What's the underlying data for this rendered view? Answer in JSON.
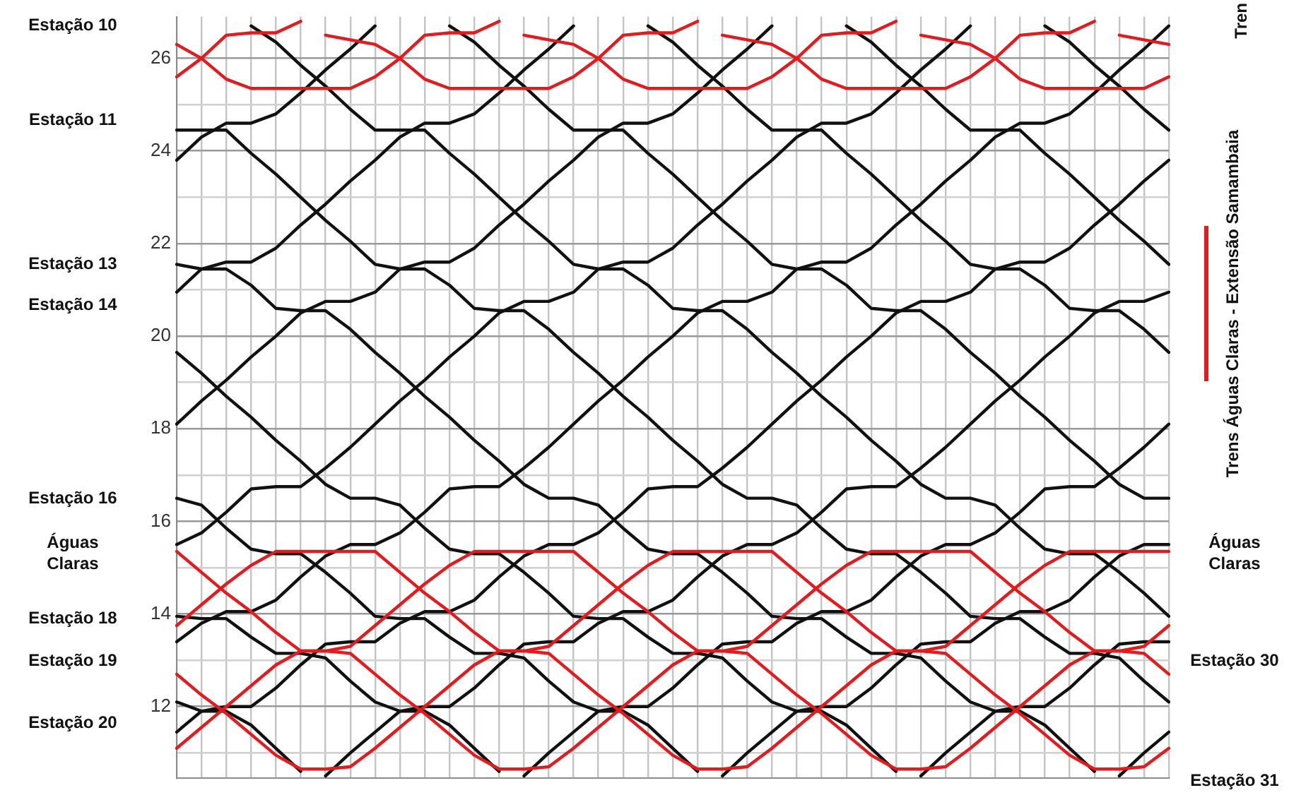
{
  "chart_data": {
    "type": "line",
    "annotations": [
      "Tren",
      "Estação 10",
      "Estação 11",
      "Estação 13",
      "Estação 14",
      "Estação 16",
      "Águas Claras",
      "Estação 18",
      "Estação 19",
      "Estação 20",
      "Águas Claras",
      "Estação 30",
      "Estação 31"
    ],
    "legend": "right",
    "grid": true,
    "marker": "none",
    "line_style": "solid",
    "tick_labels": "y",
    "categories": [
      null,
      null,
      null,
      null,
      null,
      null,
      null,
      null,
      null,
      null,
      null,
      null,
      null,
      null,
      null,
      null,
      null,
      null,
      null,
      null,
      null,
      null,
      null,
      null,
      null,
      null,
      null,
      null,
      null,
      null,
      null,
      null,
      null,
      null,
      null,
      null,
      null,
      null,
      null,
      null,
      null
    ],
    "ylim": [
      10.45,
      26.9
    ],
    "yticks": [
      {
        "value": 11,
        "label": null
      },
      12,
      {
        "value": 13,
        "label": null
      },
      14,
      {
        "value": 15,
        "label": null
      },
      16,
      {
        "value": 17,
        "label": null
      },
      18,
      {
        "value": 19,
        "label": null
      },
      20,
      {
        "value": 21,
        "label": null
      },
      22,
      {
        "value": 23,
        "label": null
      },
      24,
      {
        "value": 25,
        "label": null
      },
      26
    ],
    "series": [
      {
        "color": "#e41a1c",
        "name": "Trens Águas Claras - Extensão Samambaia",
        "values": [
          15.35,
          14.9,
          14.45,
          14.05,
          13.6,
          13.2,
          13.2,
          13.15,
          12.7,
          12.25,
          11.85,
          11.4,
          10.95,
          10.65,
          10.65,
          10.7,
          11.1,
          11.55,
          12.0,
          12.45,
          12.9,
          13.2,
          13.2,
          13.3,
          13.75,
          14.2,
          14.65,
          15.05,
          15.35,
          15.35,
          15.35,
          15.35,
          15.35,
          14.9,
          14.45,
          14.05,
          13.6,
          13.2,
          13.2,
          13.15,
          12.7
        ]
      },
      {
        "color": "#e41a1c",
        "values": [
          13.75,
          14.2,
          14.65,
          15.05,
          15.35,
          15.35,
          15.35,
          15.35,
          15.35,
          14.9,
          14.45,
          14.05,
          13.6,
          13.2,
          13.2,
          13.15,
          12.7,
          12.25,
          11.85,
          11.4,
          10.95,
          10.65,
          10.65,
          10.7,
          11.1,
          11.55,
          12.0,
          12.45,
          12.9,
          13.2,
          13.2,
          13.3,
          13.75,
          14.2,
          14.65,
          15.05,
          15.35,
          15.35,
          15.35,
          15.35,
          15.35
        ]
      },
      {
        "color": "#e41a1c",
        "values": [
          11.1,
          11.55,
          12.0,
          12.45,
          12.9,
          13.2,
          13.2,
          13.3,
          13.75,
          14.2,
          14.65,
          15.05,
          15.35,
          15.35,
          15.35,
          15.35,
          15.35,
          14.9,
          14.45,
          14.05,
          13.6,
          13.2,
          13.2,
          13.15,
          12.7,
          12.25,
          11.85,
          11.4,
          10.95,
          10.65,
          10.65,
          10.7,
          11.1,
          11.55,
          12.0,
          12.45,
          12.9,
          13.2,
          13.2,
          13.3,
          13.75
        ]
      },
      {
        "color": "#e41a1c",
        "values": [
          12.7,
          12.25,
          11.85,
          11.4,
          10.95,
          10.65,
          10.65,
          10.7,
          11.1,
          11.55,
          12.0,
          12.45,
          12.9,
          13.2,
          13.2,
          13.3,
          13.75,
          14.2,
          14.65,
          15.05,
          15.35,
          15.35,
          15.35,
          15.35,
          15.35,
          14.9,
          14.45,
          14.05,
          13.6,
          13.2,
          13.2,
          13.15,
          12.7,
          12.25,
          11.85,
          11.4,
          10.95,
          10.65,
          10.65,
          10.7,
          11.1
        ]
      },
      {
        "color": "#e41a1c",
        "values": [
          25.6,
          26.0,
          26.5,
          26.55,
          26.55,
          26.8,
          null,
          null,
          null,
          null,
          null,
          null,
          null,
          null,
          null,
          null,
          null,
          null,
          null,
          null,
          null,
          null,
          null,
          null,
          null,
          null,
          null,
          null,
          null,
          null,
          null,
          null,
          null,
          null,
          null,
          null,
          null,
          null,
          null,
          null,
          null
        ]
      },
      {
        "color": "#e41a1c",
        "values": [
          26.3,
          26.0,
          25.55,
          25.35,
          25.35,
          25.35,
          25.35,
          25.35,
          25.6,
          26.0,
          26.5,
          26.55,
          26.55,
          26.8,
          null,
          null,
          null,
          null,
          null,
          null,
          null,
          null,
          null,
          null,
          null,
          null,
          null,
          null,
          null,
          null,
          null,
          null,
          null,
          null,
          null,
          null,
          null,
          null,
          null,
          null,
          null
        ]
      },
      {
        "color": "#e41a1c",
        "values": [
          null,
          null,
          null,
          null,
          null,
          null,
          26.5,
          26.4,
          26.3,
          26.0,
          25.55,
          25.35,
          25.35,
          25.35,
          25.35,
          25.35,
          25.6,
          26.0,
          26.5,
          26.55,
          26.55,
          26.8,
          null,
          null,
          null,
          null,
          null,
          null,
          null,
          null,
          null,
          null,
          null,
          null,
          null,
          null,
          null,
          null,
          null,
          null,
          null
        ]
      },
      {
        "color": "#e41a1c",
        "values": [
          null,
          null,
          null,
          null,
          null,
          null,
          null,
          null,
          null,
          null,
          null,
          null,
          null,
          null,
          26.5,
          26.4,
          26.3,
          26.0,
          25.55,
          25.35,
          25.35,
          25.35,
          25.35,
          25.35,
          25.6,
          26.0,
          26.5,
          26.55,
          26.55,
          26.8,
          null,
          null,
          null,
          null,
          null,
          null,
          null,
          null,
          null,
          null,
          null
        ]
      },
      {
        "color": "#e41a1c",
        "values": [
          null,
          null,
          null,
          null,
          null,
          null,
          null,
          null,
          null,
          null,
          null,
          null,
          null,
          null,
          null,
          null,
          null,
          null,
          null,
          null,
          null,
          null,
          26.5,
          26.4,
          26.3,
          26.0,
          25.55,
          25.35,
          25.35,
          25.35,
          25.35,
          25.35,
          25.6,
          26.0,
          26.5,
          26.55,
          26.55,
          26.8,
          null,
          null,
          null
        ]
      },
      {
        "color": "#e41a1c",
        "values": [
          null,
          null,
          null,
          null,
          null,
          null,
          null,
          null,
          null,
          null,
          null,
          null,
          null,
          null,
          null,
          null,
          null,
          null,
          null,
          null,
          null,
          null,
          null,
          null,
          null,
          null,
          null,
          null,
          null,
          null,
          26.5,
          26.4,
          26.3,
          26.0,
          25.55,
          25.35,
          25.35,
          25.35,
          25.35,
          25.35,
          25.6
        ]
      },
      {
        "color": "#e41a1c",
        "values": [
          null,
          null,
          null,
          null,
          null,
          null,
          null,
          null,
          null,
          null,
          null,
          null,
          null,
          null,
          null,
          null,
          null,
          null,
          null,
          null,
          null,
          null,
          null,
          null,
          null,
          null,
          null,
          null,
          null,
          null,
          null,
          null,
          null,
          null,
          null,
          null,
          null,
          null,
          26.5,
          26.4,
          26.3
        ]
      },
      {
        "color": "#111111",
        "values": [
          23.8,
          24.3,
          24.6,
          24.6,
          24.8,
          25.25,
          25.75,
          26.2,
          26.7,
          null,
          null,
          null,
          null,
          null,
          null,
          null,
          null,
          null,
          null,
          null,
          null,
          null,
          null,
          null,
          null,
          null,
          null,
          null,
          null,
          null,
          null,
          null,
          null,
          null,
          null,
          null,
          null,
          null,
          null,
          null,
          null
        ]
      },
      {
        "color": "#111111",
        "values": [
          20.95,
          21.45,
          21.6,
          21.6,
          21.9,
          22.4,
          22.85,
          23.35,
          23.8,
          24.3,
          24.6,
          24.6,
          24.8,
          25.25,
          25.75,
          26.2,
          26.7,
          null,
          null,
          null,
          null,
          null,
          null,
          null,
          null,
          null,
          null,
          null,
          null,
          null,
          null,
          null,
          null,
          null,
          null,
          null,
          null,
          null,
          null,
          null,
          null
        ]
      },
      {
        "color": "#111111",
        "values": [
          18.1,
          18.6,
          19.05,
          19.55,
          20.0,
          20.5,
          20.75,
          20.75,
          20.95,
          21.45,
          21.6,
          21.6,
          21.9,
          22.4,
          22.85,
          23.35,
          23.8,
          24.3,
          24.6,
          24.6,
          24.8,
          25.25,
          25.75,
          26.2,
          26.7,
          null,
          null,
          null,
          null,
          null,
          null,
          null,
          null,
          null,
          null,
          null,
          null,
          null,
          null,
          null,
          null
        ]
      },
      {
        "color": "#111111",
        "values": [
          15.5,
          15.75,
          16.2,
          16.7,
          16.75,
          16.75,
          17.15,
          17.6,
          18.1,
          18.6,
          19.05,
          19.55,
          20.0,
          20.5,
          20.75,
          20.75,
          20.95,
          21.45,
          21.6,
          21.6,
          21.9,
          22.4,
          22.85,
          23.35,
          23.8,
          24.3,
          24.6,
          24.6,
          24.8,
          25.25,
          25.75,
          26.2,
          26.7,
          null,
          null,
          null,
          null,
          null,
          null,
          null,
          null
        ]
      },
      {
        "color": "#111111",
        "values": [
          13.4,
          13.8,
          14.05,
          14.05,
          14.3,
          14.8,
          15.25,
          15.5,
          15.5,
          15.75,
          16.2,
          16.7,
          16.75,
          16.75,
          17.15,
          17.6,
          18.1,
          18.6,
          19.05,
          19.55,
          20.0,
          20.5,
          20.75,
          20.75,
          20.95,
          21.45,
          21.6,
          21.6,
          21.9,
          22.4,
          22.85,
          23.35,
          23.8,
          24.3,
          24.6,
          24.6,
          24.8,
          25.25,
          25.75,
          26.2,
          26.7
        ]
      },
      {
        "color": "#111111",
        "values": [
          11.45,
          11.9,
          12.0,
          12.0,
          12.4,
          12.9,
          13.35,
          13.4,
          13.4,
          13.8,
          14.05,
          14.05,
          14.3,
          14.8,
          15.25,
          15.5,
          15.5,
          15.75,
          16.2,
          16.7,
          16.75,
          16.75,
          17.15,
          17.6,
          18.1,
          18.6,
          19.05,
          19.55,
          20.0,
          20.5,
          20.75,
          20.75,
          20.95,
          21.45,
          21.6,
          21.6,
          21.9,
          22.4,
          22.85,
          23.35,
          23.8
        ]
      },
      {
        "color": "#111111",
        "values": [
          null,
          null,
          null,
          null,
          null,
          null,
          10.5,
          11.0,
          11.45,
          11.9,
          12.0,
          12.0,
          12.4,
          12.9,
          13.35,
          13.4,
          13.4,
          13.8,
          14.05,
          14.05,
          14.3,
          14.8,
          15.25,
          15.5,
          15.5,
          15.75,
          16.2,
          16.7,
          16.75,
          16.75,
          17.15,
          17.6,
          18.1,
          18.6,
          19.05,
          19.55,
          20.0,
          20.5,
          20.75,
          20.75,
          20.95
        ]
      },
      {
        "color": "#111111",
        "values": [
          null,
          null,
          null,
          null,
          null,
          null,
          null,
          null,
          null,
          null,
          null,
          null,
          null,
          null,
          10.5,
          11.0,
          11.45,
          11.9,
          12.0,
          12.0,
          12.4,
          12.9,
          13.35,
          13.4,
          13.4,
          13.8,
          14.05,
          14.05,
          14.3,
          14.8,
          15.25,
          15.5,
          15.5,
          15.75,
          16.2,
          16.7,
          16.75,
          16.75,
          17.15,
          17.6,
          18.1
        ]
      },
      {
        "color": "#111111",
        "values": [
          null,
          null,
          null,
          null,
          null,
          null,
          null,
          null,
          null,
          null,
          null,
          null,
          null,
          null,
          null,
          null,
          null,
          null,
          null,
          null,
          null,
          null,
          10.5,
          11.0,
          11.45,
          11.9,
          12.0,
          12.0,
          12.4,
          12.9,
          13.35,
          13.4,
          13.4,
          13.8,
          14.05,
          14.05,
          14.3,
          14.8,
          15.25,
          15.5,
          15.5
        ]
      },
      {
        "color": "#111111",
        "values": [
          null,
          null,
          null,
          null,
          null,
          null,
          null,
          null,
          null,
          null,
          null,
          null,
          null,
          null,
          null,
          null,
          null,
          null,
          null,
          null,
          null,
          null,
          null,
          null,
          null,
          null,
          null,
          null,
          null,
          null,
          10.5,
          11.0,
          11.45,
          11.9,
          12.0,
          12.0,
          12.4,
          12.9,
          13.35,
          13.4,
          13.4
        ]
      },
      {
        "color": "#111111",
        "values": [
          null,
          null,
          null,
          null,
          null,
          null,
          null,
          null,
          null,
          null,
          null,
          null,
          null,
          null,
          null,
          null,
          null,
          null,
          null,
          null,
          null,
          null,
          null,
          null,
          null,
          null,
          null,
          null,
          null,
          null,
          null,
          null,
          null,
          null,
          null,
          null,
          null,
          null,
          10.5,
          11.0,
          11.45
        ]
      },
      {
        "color": "#111111",
        "values": [
          12.1,
          11.9,
          11.9,
          11.6,
          11.1,
          10.6,
          null,
          null,
          null,
          null,
          null,
          null,
          null,
          null,
          null,
          null,
          null,
          null,
          null,
          null,
          null,
          null,
          null,
          null,
          null,
          null,
          null,
          null,
          null,
          null,
          null,
          null,
          null,
          null,
          null,
          null,
          null,
          null,
          null,
          null,
          null
        ]
      },
      {
        "color": "#111111",
        "values": [
          13.95,
          13.9,
          13.9,
          13.5,
          13.15,
          13.15,
          13.05,
          12.55,
          12.1,
          11.9,
          11.9,
          11.6,
          11.1,
          10.6,
          null,
          null,
          null,
          null,
          null,
          null,
          null,
          null,
          null,
          null,
          null,
          null,
          null,
          null,
          null,
          null,
          null,
          null,
          null,
          null,
          null,
          null,
          null,
          null,
          null,
          null,
          null
        ]
      },
      {
        "color": "#111111",
        "values": [
          16.5,
          16.35,
          15.85,
          15.4,
          15.3,
          15.3,
          14.9,
          14.45,
          13.95,
          13.9,
          13.9,
          13.5,
          13.15,
          13.15,
          13.05,
          12.55,
          12.1,
          11.9,
          11.9,
          11.6,
          11.1,
          10.6,
          null,
          null,
          null,
          null,
          null,
          null,
          null,
          null,
          null,
          null,
          null,
          null,
          null,
          null,
          null,
          null,
          null,
          null,
          null
        ]
      },
      {
        "color": "#111111",
        "values": [
          19.65,
          19.2,
          18.7,
          18.25,
          17.75,
          17.3,
          16.8,
          16.5,
          16.5,
          16.35,
          15.85,
          15.4,
          15.3,
          15.3,
          14.9,
          14.45,
          13.95,
          13.9,
          13.9,
          13.5,
          13.15,
          13.15,
          13.05,
          12.55,
          12.1,
          11.9,
          11.9,
          11.6,
          11.1,
          10.6,
          null,
          null,
          null,
          null,
          null,
          null,
          null,
          null,
          null,
          null,
          null
        ]
      },
      {
        "color": "#111111",
        "values": [
          21.55,
          21.45,
          21.45,
          21.1,
          20.6,
          20.55,
          20.55,
          20.15,
          19.65,
          19.2,
          18.7,
          18.25,
          17.75,
          17.3,
          16.8,
          16.5,
          16.5,
          16.35,
          15.85,
          15.4,
          15.3,
          15.3,
          14.9,
          14.45,
          13.95,
          13.9,
          13.9,
          13.5,
          13.15,
          13.15,
          13.05,
          12.55,
          12.1,
          11.9,
          11.9,
          11.6,
          11.1,
          10.6,
          null,
          null,
          null
        ]
      },
      {
        "color": "#111111",
        "values": [
          24.45,
          24.45,
          24.45,
          23.95,
          23.5,
          23.0,
          22.5,
          22.05,
          21.55,
          21.45,
          21.45,
          21.1,
          20.6,
          20.55,
          20.55,
          20.15,
          19.65,
          19.2,
          18.7,
          18.25,
          17.75,
          17.3,
          16.8,
          16.5,
          16.5,
          16.35,
          15.85,
          15.4,
          15.3,
          15.3,
          14.9,
          14.45,
          13.95,
          13.9,
          13.9,
          13.5,
          13.15,
          13.15,
          13.05,
          12.55,
          12.1
        ]
      },
      {
        "color": "#111111",
        "values": [
          null,
          null,
          null,
          26.7,
          26.35,
          25.85,
          25.4,
          24.9,
          24.45,
          24.45,
          24.45,
          23.95,
          23.5,
          23.0,
          22.5,
          22.05,
          21.55,
          21.45,
          21.45,
          21.1,
          20.6,
          20.55,
          20.55,
          20.15,
          19.65,
          19.2,
          18.7,
          18.25,
          17.75,
          17.3,
          16.8,
          16.5,
          16.5,
          16.35,
          15.85,
          15.4,
          15.3,
          15.3,
          14.9,
          14.45,
          13.95
        ]
      },
      {
        "color": "#111111",
        "values": [
          null,
          null,
          null,
          null,
          null,
          null,
          null,
          null,
          null,
          null,
          null,
          26.7,
          26.35,
          25.85,
          25.4,
          24.9,
          24.45,
          24.45,
          24.45,
          23.95,
          23.5,
          23.0,
          22.5,
          22.05,
          21.55,
          21.45,
          21.45,
          21.1,
          20.6,
          20.55,
          20.55,
          20.15,
          19.65,
          19.2,
          18.7,
          18.25,
          17.75,
          17.3,
          16.8,
          16.5,
          16.5
        ]
      },
      {
        "color": "#111111",
        "values": [
          null,
          null,
          null,
          null,
          null,
          null,
          null,
          null,
          null,
          null,
          null,
          null,
          null,
          null,
          null,
          null,
          null,
          null,
          null,
          26.7,
          26.35,
          25.85,
          25.4,
          24.9,
          24.45,
          24.45,
          24.45,
          23.95,
          23.5,
          23.0,
          22.5,
          22.05,
          21.55,
          21.45,
          21.45,
          21.1,
          20.6,
          20.55,
          20.55,
          20.15,
          19.65
        ]
      },
      {
        "color": "#111111",
        "values": [
          null,
          null,
          null,
          null,
          null,
          null,
          null,
          null,
          null,
          null,
          null,
          null,
          null,
          null,
          null,
          null,
          null,
          null,
          null,
          null,
          null,
          null,
          null,
          null,
          null,
          null,
          null,
          26.7,
          26.35,
          25.85,
          25.4,
          24.9,
          24.45,
          24.45,
          24.45,
          23.95,
          23.5,
          23.0,
          22.5,
          22.05,
          21.55
        ]
      },
      {
        "color": "#111111",
        "values": [
          null,
          null,
          null,
          null,
          null,
          null,
          null,
          null,
          null,
          null,
          null,
          null,
          null,
          null,
          null,
          null,
          null,
          null,
          null,
          null,
          null,
          null,
          null,
          null,
          null,
          null,
          null,
          null,
          null,
          null,
          null,
          null,
          null,
          null,
          null,
          26.7,
          26.35,
          25.85,
          25.4,
          24.9,
          24.45
        ]
      }
    ]
  }
}
